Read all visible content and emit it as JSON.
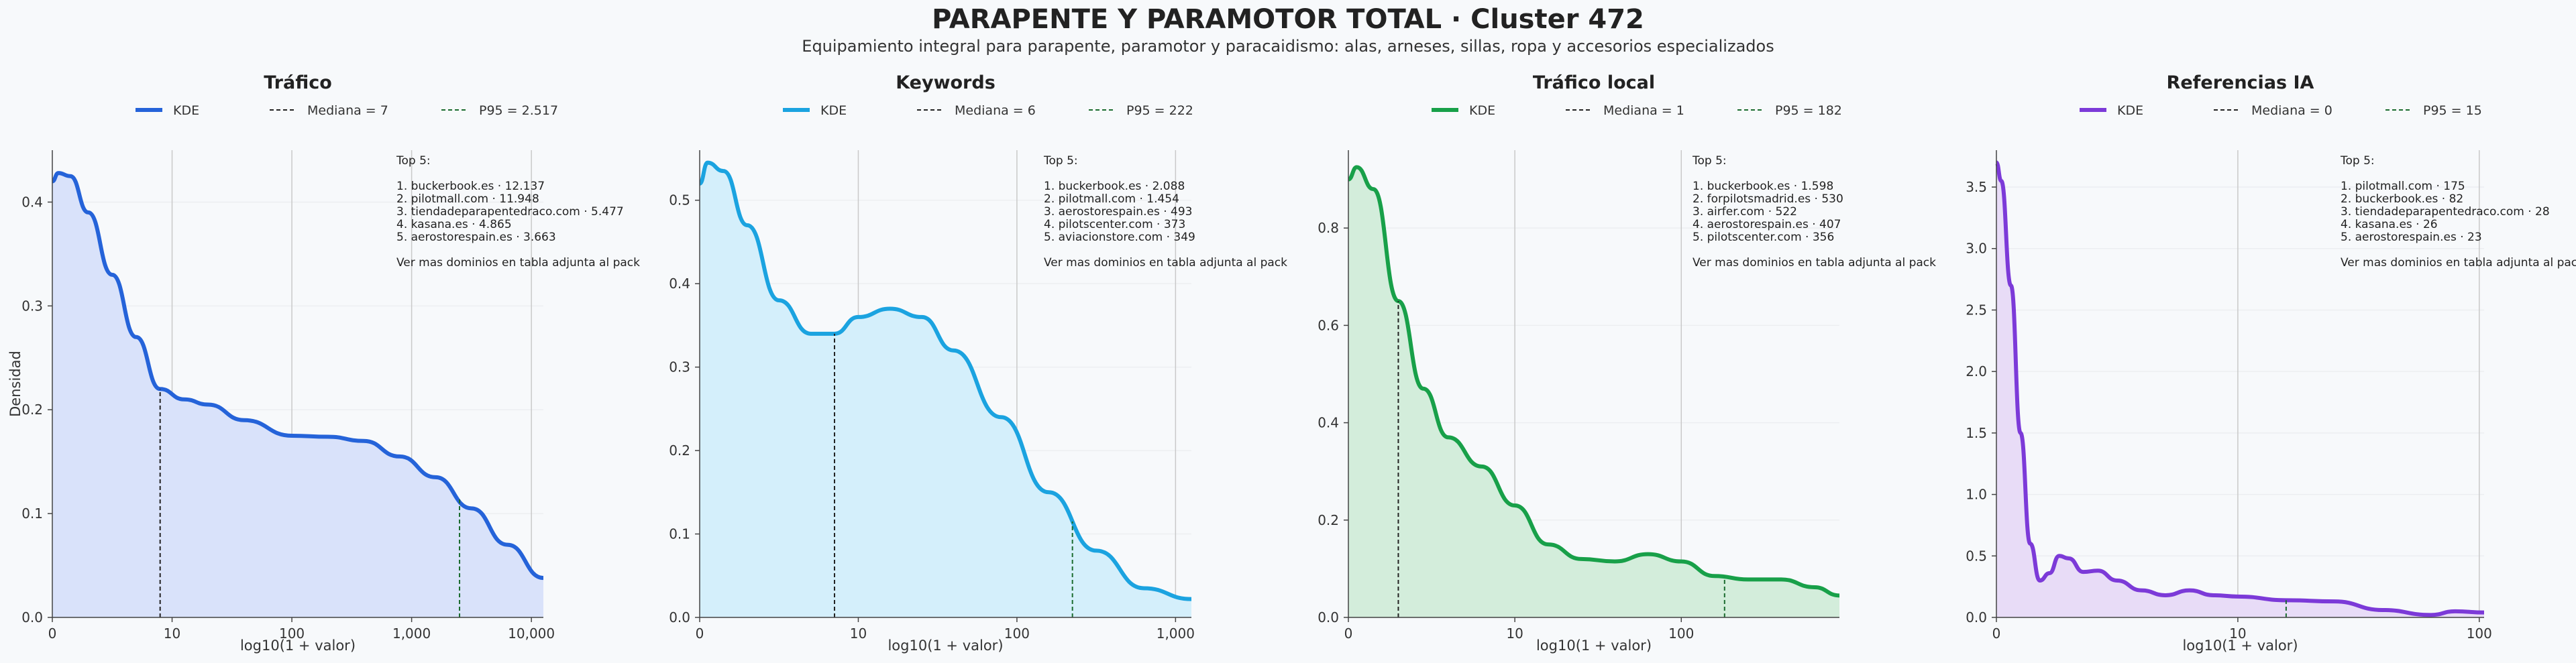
{
  "title": "PARAPENTE Y PARAMOTOR TOTAL · Cluster 472",
  "subtitle": "Equipamiento integral para parapente, paramotor y paracaidismo: alas, arneses, sillas, ropa y accesorios especializados",
  "ylabel": "Densidad",
  "xlabel": "log10(1 + valor)",
  "chart_data": [
    {
      "type": "area",
      "title": "Tráfico",
      "color": "#2563d9",
      "fill": "#d9e2fa",
      "legend": [
        "KDE",
        "Mediana = 7",
        "P95 = 2.517"
      ],
      "xlim": [
        0,
        4.1
      ],
      "ylim": [
        0,
        0.45
      ],
      "xticks": [
        {
          "v": 0,
          "l": "0"
        },
        {
          "v": 1,
          "l": "10"
        },
        {
          "v": 2,
          "l": "100"
        },
        {
          "v": 3,
          "l": "1,000"
        },
        {
          "v": 4,
          "l": "10,000"
        }
      ],
      "yticks": [
        0,
        0.1,
        0.2,
        0.3,
        0.4
      ],
      "yfmt": 1,
      "median_x": 0.9,
      "p95_x": 3.4,
      "x": [
        0,
        0.05,
        0.15,
        0.3,
        0.5,
        0.7,
        0.9,
        1.1,
        1.3,
        1.6,
        2.0,
        2.3,
        2.6,
        2.9,
        3.2,
        3.5,
        3.8,
        4.1
      ],
      "y": [
        0.42,
        0.428,
        0.425,
        0.39,
        0.33,
        0.27,
        0.22,
        0.21,
        0.205,
        0.19,
        0.175,
        0.174,
        0.17,
        0.155,
        0.135,
        0.105,
        0.07,
        0.038
      ],
      "top5": [
        "Top 5:",
        "",
        "1. buckerbook.es · 12.137",
        "2. pilotmall.com · 11.948",
        "3. tiendadeparapentedraco.com · 5.477",
        "4. kasana.es · 4.865",
        "5. aerostorespain.es · 3.663",
        "",
        "Ver mas dominios en tabla adjunta al pack"
      ]
    },
    {
      "type": "area",
      "title": "Keywords",
      "color": "#1ba3e0",
      "fill": "#d4effb",
      "legend": [
        "KDE",
        "Mediana = 6",
        "P95 = 222"
      ],
      "xlim": [
        0,
        3.1
      ],
      "ylim": [
        0,
        0.56
      ],
      "xticks": [
        {
          "v": 0,
          "l": "0"
        },
        {
          "v": 1,
          "l": "10"
        },
        {
          "v": 2,
          "l": "100"
        },
        {
          "v": 3,
          "l": "1,000"
        }
      ],
      "yticks": [
        0,
        0.1,
        0.2,
        0.3,
        0.4,
        0.5
      ],
      "yfmt": 1,
      "median_x": 0.85,
      "p95_x": 2.35,
      "x": [
        0,
        0.05,
        0.15,
        0.3,
        0.5,
        0.7,
        0.85,
        1.0,
        1.2,
        1.4,
        1.6,
        1.9,
        2.2,
        2.5,
        2.8,
        3.1
      ],
      "y": [
        0.52,
        0.545,
        0.535,
        0.47,
        0.38,
        0.34,
        0.34,
        0.36,
        0.37,
        0.36,
        0.32,
        0.24,
        0.15,
        0.08,
        0.035,
        0.022
      ],
      "top5": [
        "Top 5:",
        "",
        "1. buckerbook.es · 2.088",
        "2. pilotmall.com · 1.454",
        "3. aerostorespain.es · 493",
        "4. pilotscenter.com · 373",
        "5. aviacionstore.com · 349",
        "",
        "Ver mas dominios en tabla adjunta al pack"
      ]
    },
    {
      "type": "area",
      "title": "Tráfico local",
      "color": "#18a049",
      "fill": "#d3eddb",
      "legend": [
        "KDE",
        "Mediana = 1",
        "P95 = 182"
      ],
      "xlim": [
        0,
        2.95
      ],
      "ylim": [
        0,
        0.96
      ],
      "xticks": [
        {
          "v": 0,
          "l": "0"
        },
        {
          "v": 1,
          "l": "10"
        },
        {
          "v": 2,
          "l": "100"
        }
      ],
      "yticks": [
        0,
        0.2,
        0.4,
        0.6,
        0.8
      ],
      "yfmt": 1,
      "median_x": 0.3,
      "p95_x": 2.26,
      "x": [
        0,
        0.05,
        0.15,
        0.3,
        0.45,
        0.6,
        0.8,
        1.0,
        1.2,
        1.4,
        1.6,
        1.8,
        2.0,
        2.2,
        2.4,
        2.6,
        2.8,
        2.95
      ],
      "y": [
        0.9,
        0.925,
        0.88,
        0.65,
        0.47,
        0.37,
        0.31,
        0.23,
        0.15,
        0.12,
        0.115,
        0.13,
        0.115,
        0.085,
        0.078,
        0.078,
        0.062,
        0.045
      ],
      "top5": [
        "Top 5:",
        "",
        "1. buckerbook.es · 1.598",
        "2. forpilotsmadrid.es · 530",
        "3. airfer.com · 522",
        "4. aerostorespain.es · 407",
        "5. pilotscenter.com · 356",
        "",
        "Ver mas dominios en tabla adjunta al pack"
      ]
    },
    {
      "type": "area",
      "title": "Referencias IA",
      "color": "#7c3ad8",
      "fill": "#e8dcf7",
      "legend": [
        "KDE",
        "Mediana = 0",
        "P95 = 15"
      ],
      "xlim": [
        0,
        2.02
      ],
      "ylim": [
        0,
        3.8
      ],
      "xticks": [
        {
          "v": 0,
          "l": "0"
        },
        {
          "v": 1,
          "l": "10"
        },
        {
          "v": 2,
          "l": "100"
        }
      ],
      "yticks": [
        0,
        0.5,
        1.0,
        1.5,
        2.0,
        2.5,
        3.0,
        3.5
      ],
      "yfmt": 1,
      "median_x": 0,
      "p95_x": 1.2,
      "x": [
        0,
        0.02,
        0.06,
        0.1,
        0.14,
        0.18,
        0.22,
        0.26,
        0.3,
        0.36,
        0.42,
        0.5,
        0.6,
        0.7,
        0.8,
        0.9,
        1.0,
        1.2,
        1.4,
        1.6,
        1.8,
        1.9,
        2.02
      ],
      "y": [
        3.7,
        3.55,
        2.7,
        1.5,
        0.6,
        0.3,
        0.36,
        0.5,
        0.48,
        0.37,
        0.38,
        0.3,
        0.22,
        0.18,
        0.22,
        0.18,
        0.17,
        0.14,
        0.13,
        0.06,
        0.02,
        0.05,
        0.04
      ],
      "top5": [
        "Top 5:",
        "",
        "1. pilotmall.com · 175",
        "2. buckerbook.es · 82",
        "3. tiendadeparapentedraco.com · 28",
        "4. kasana.es · 26",
        "5. aerostorespain.es · 23",
        "",
        "Ver mas dominios en tabla adjunta al pack"
      ]
    }
  ]
}
